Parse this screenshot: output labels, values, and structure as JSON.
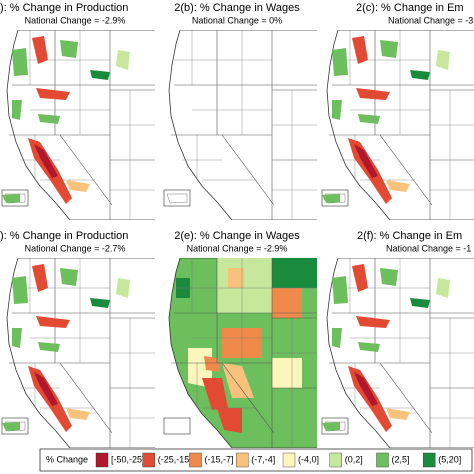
{
  "panels": [
    {
      "title": "): % Change in Production",
      "subtitle": "National Change = -2.9%"
    },
    {
      "title": "2(b): % Change in Wages",
      "subtitle": "National Change = 0%"
    },
    {
      "title": "2(c): % Change in Em",
      "subtitle": "National Change = -3"
    },
    {
      "title": "): % Change in Production",
      "subtitle": "National Change = -2.7%"
    },
    {
      "title": "2(e): % Change in Wages",
      "subtitle": "National Change = -2.9%"
    },
    {
      "title": "2(f): % Change in Em",
      "subtitle": "National Change = -1"
    }
  ],
  "legend": {
    "title": "% Change",
    "items": [
      {
        "label": "[-50,-25]",
        "color": "#b2182b"
      },
      {
        "label": "(-25,-15]",
        "color": "#e34a33"
      },
      {
        "label": "(-15,-7]",
        "color": "#f08a4a"
      },
      {
        "label": "(-7,-4]",
        "color": "#f9c27c"
      },
      {
        "label": "(-4,0]",
        "color": "#fbf6bc"
      },
      {
        "label": "(0,2]",
        "color": "#c7e89c"
      },
      {
        "label": "(2,5]",
        "color": "#6cbf5c"
      },
      {
        "label": "(5,20]",
        "color": "#1a8a3c"
      }
    ]
  }
}
